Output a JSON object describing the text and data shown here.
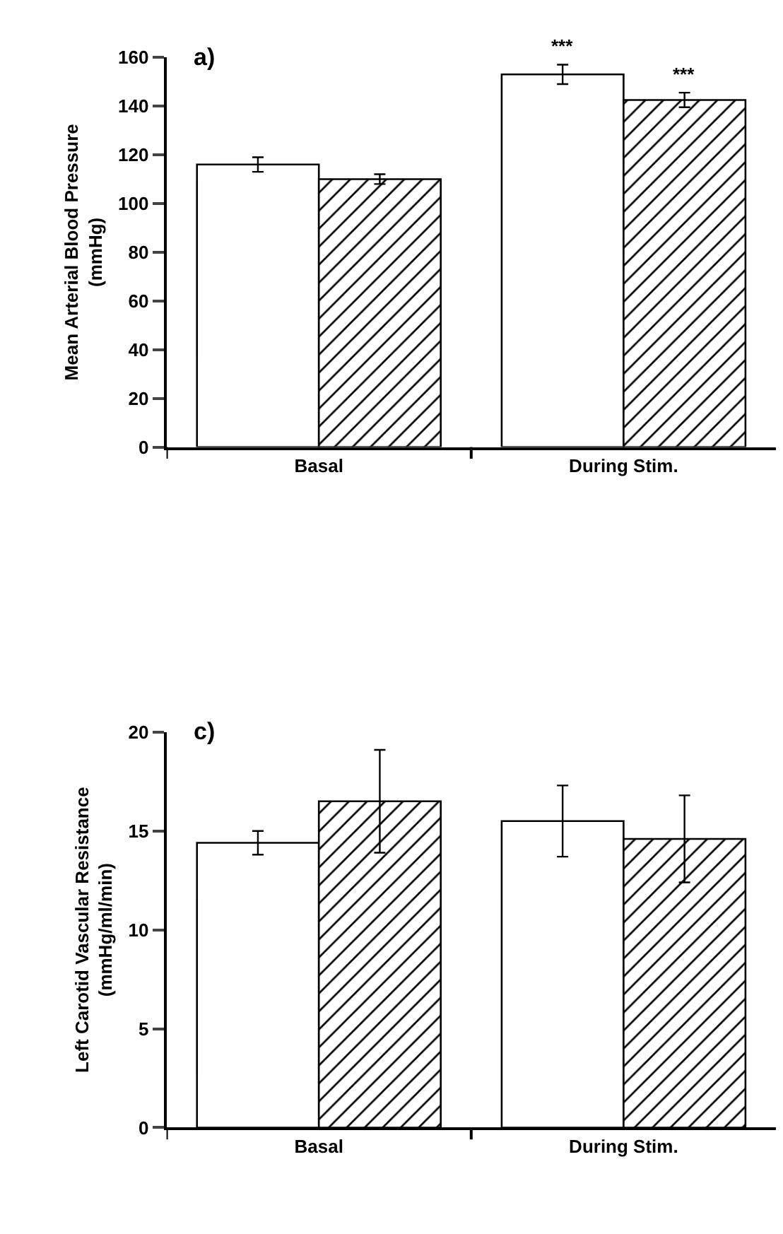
{
  "chart_data": [
    {
      "type": "bar",
      "ylabel": "Mean Arterial Blood Pressure\n(mmHg)",
      "categories": [
        "Basal",
        "During Stim."
      ],
      "ylim": [
        0,
        160
      ],
      "yticks": [
        0,
        20,
        40,
        60,
        80,
        100,
        120,
        140,
        160
      ],
      "annotations": [
        "a)"
      ],
      "series": [
        {
          "color": "#ffffff",
          "values": [
            116,
            153
          ],
          "errors": [
            3,
            4
          ],
          "value_labels": [
            null,
            "***"
          ]
        },
        {
          "color": "#000000",
          "values": [
            110,
            142.5
          ],
          "errors": [
            2,
            3
          ],
          "value_labels": [
            null,
            "***"
          ]
        }
      ]
    },
    {
      "type": "bar",
      "ylabel": "Left Carotid Vascular Resistance\n(mmHg/ml/min)",
      "categories": [
        "Basal",
        "During Stim."
      ],
      "ylim": [
        0,
        20
      ],
      "yticks": [
        0,
        5,
        10,
        15,
        20
      ],
      "annotations": [
        "c)"
      ],
      "series": [
        {
          "color": "#ffffff",
          "values": [
            14.4,
            15.5
          ],
          "errors": [
            0.6,
            1.8
          ]
        },
        {
          "color": "#000000",
          "values": [
            16.5,
            14.6
          ],
          "errors": [
            2.6,
            2.2
          ]
        }
      ]
    }
  ]
}
